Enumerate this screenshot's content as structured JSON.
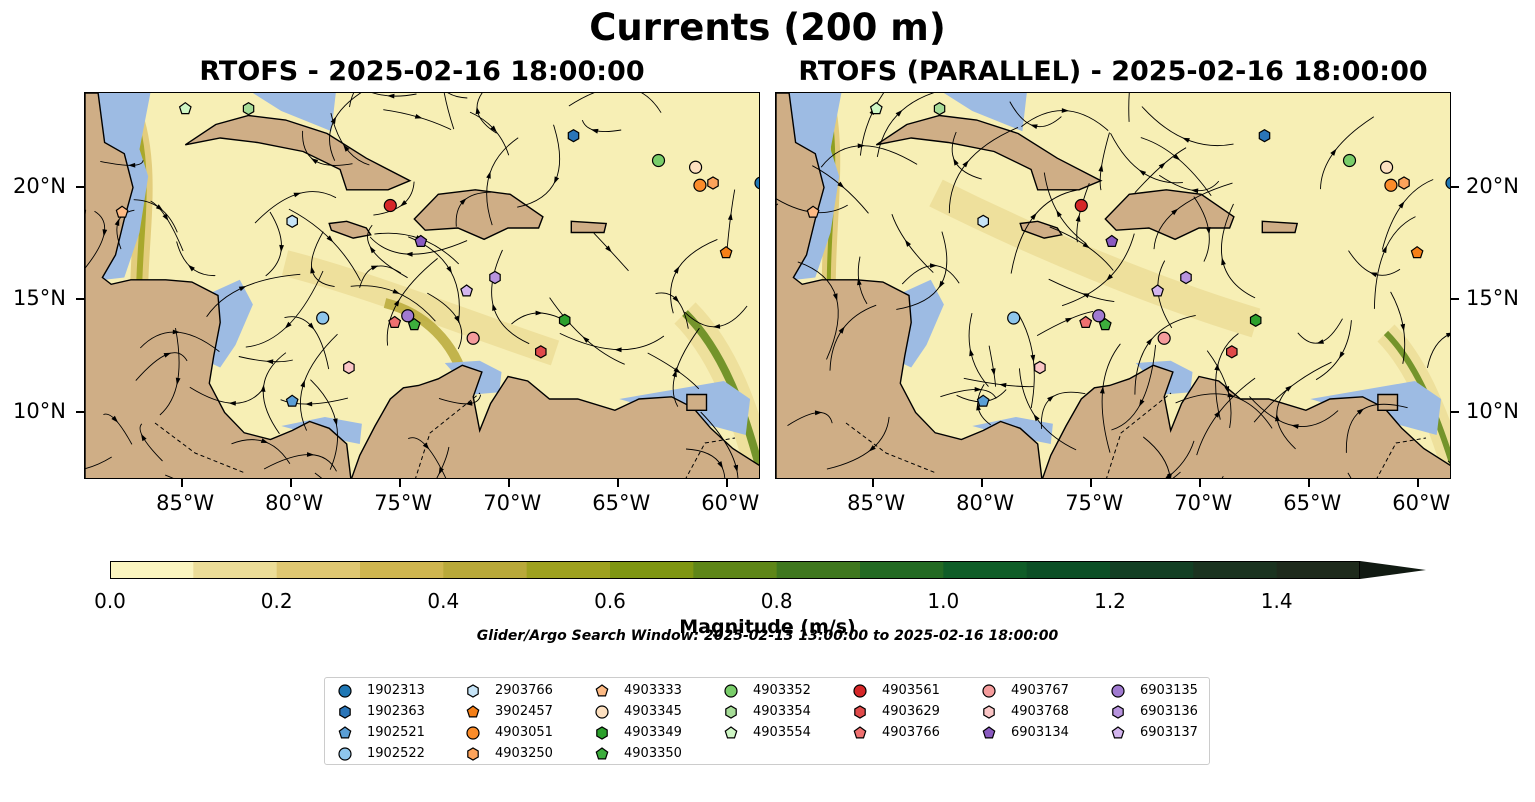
{
  "figure": {
    "title": "Currents (200 m)",
    "panel_left_title": "RTOFS - 2025-02-16 18:00:00",
    "panel_right_title": "RTOFS (PARALLEL) - 2025-02-16 18:00:00",
    "search_window": "Glider/Argo Search Window: 2025-02-13 13:00:00 to 2025-02-16 18:00:00"
  },
  "map": {
    "lon_range": [
      -89.5,
      -58.5
    ],
    "lat_range": [
      7,
      24.2
    ],
    "lat_ticks": [
      {
        "value": 10,
        "label": "10°N"
      },
      {
        "value": 15,
        "label": "15°N"
      },
      {
        "value": 20,
        "label": "20°N"
      }
    ],
    "lon_ticks": [
      {
        "value": -85,
        "label": "85°W"
      },
      {
        "value": -80,
        "label": "80°W"
      },
      {
        "value": -75,
        "label": "75°W"
      },
      {
        "value": -70,
        "label": "70°W"
      },
      {
        "value": -65,
        "label": "65°W"
      },
      {
        "value": -60,
        "label": "60°W"
      }
    ],
    "colors": {
      "ocean_low": "#f7efb5",
      "land": "#cfae86",
      "shallow": "#9dbbe3",
      "coast": "#000000"
    }
  },
  "colorbar": {
    "label": "Magnitude (m/s)",
    "min": 0.0,
    "max": 1.5,
    "ticks": [
      "0.0",
      "0.2",
      "0.4",
      "0.6",
      "0.8",
      "1.0",
      "1.2",
      "1.4"
    ],
    "colors": [
      "#fbf5c0",
      "#ecdd98",
      "#dfc772",
      "#cfb650",
      "#b9a93a",
      "#9ea11f",
      "#7f9612",
      "#5e8618",
      "#3f771e",
      "#236a23",
      "#0f5d28",
      "#0c4f26",
      "#133f24",
      "#1b3320",
      "#1e2a1c"
    ]
  },
  "platforms": [
    {
      "id": "1902313",
      "marker": "circle",
      "color": "#1f77b4",
      "lon": -58.5,
      "lat": 20.2
    },
    {
      "id": "1902363",
      "marker": "hexagon",
      "color": "#2a75b8",
      "lon": -67.1,
      "lat": 22.3
    },
    {
      "id": "1902521",
      "marker": "pentagon",
      "color": "#5b9fd6",
      "lon": -80.0,
      "lat": 10.5
    },
    {
      "id": "1902522",
      "marker": "circle",
      "color": "#8ec6ec",
      "lon": -78.6,
      "lat": 14.2
    },
    {
      "id": "2903766",
      "marker": "hexagon",
      "color": "#c6e4f7",
      "lon": -80.0,
      "lat": 18.5
    },
    {
      "id": "3902457",
      "marker": "pentagon",
      "color": "#f57f17",
      "lon": -60.1,
      "lat": 17.1
    },
    {
      "id": "4903051",
      "marker": "circle",
      "color": "#fb8c2a",
      "lon": -61.3,
      "lat": 20.1
    },
    {
      "id": "4903250",
      "marker": "hexagon",
      "color": "#fca35b",
      "lon": -60.7,
      "lat": 20.2
    },
    {
      "id": "4903333",
      "marker": "pentagon",
      "color": "#fdba84",
      "lon": -87.8,
      "lat": 18.9
    },
    {
      "id": "4903345",
      "marker": "circle",
      "color": "#fde0c0",
      "lon": -61.5,
      "lat": 20.9
    },
    {
      "id": "4903349",
      "marker": "hexagon",
      "color": "#2ca02c",
      "lon": -67.5,
      "lat": 14.1
    },
    {
      "id": "4903350",
      "marker": "pentagon",
      "color": "#3dae3d",
      "lon": -74.4,
      "lat": 13.9
    },
    {
      "id": "4903352",
      "marker": "circle",
      "color": "#79cd6a",
      "lon": -63.2,
      "lat": 21.2
    },
    {
      "id": "4903354",
      "marker": "hexagon",
      "color": "#a6dc97",
      "lon": -82.0,
      "lat": 23.5
    },
    {
      "id": "4903554",
      "marker": "pentagon",
      "color": "#cff7c5",
      "lon": -84.9,
      "lat": 23.5
    },
    {
      "id": "4903561",
      "marker": "circle",
      "color": "#d62728",
      "lon": -75.5,
      "lat": 19.2
    },
    {
      "id": "4903629",
      "marker": "hexagon",
      "color": "#e04a4a",
      "lon": -68.6,
      "lat": 12.7
    },
    {
      "id": "4903766",
      "marker": "pentagon",
      "color": "#ef7070",
      "lon": -75.3,
      "lat": 14.0
    },
    {
      "id": "4903767",
      "marker": "circle",
      "color": "#f59c9c",
      "lon": -71.7,
      "lat": 13.3
    },
    {
      "id": "4903768",
      "marker": "hexagon",
      "color": "#fbc6c6",
      "lon": -77.4,
      "lat": 12.0
    },
    {
      "id": "6903134",
      "marker": "pentagon",
      "color": "#8a5ac0",
      "lon": -74.1,
      "lat": 17.6
    },
    {
      "id": "6903135",
      "marker": "circle",
      "color": "#a07ad0",
      "lon": -74.7,
      "lat": 14.3
    },
    {
      "id": "6903136",
      "marker": "hexagon",
      "color": "#b894de",
      "lon": -70.7,
      "lat": 16.0
    },
    {
      "id": "6903137",
      "marker": "pentagon",
      "color": "#d3b5ee",
      "lon": -72.0,
      "lat": 15.4
    }
  ]
}
